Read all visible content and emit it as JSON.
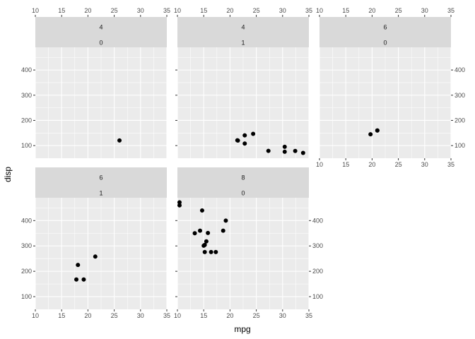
{
  "chart_data": {
    "type": "scatter",
    "xlabel": "mpg",
    "ylabel": "disp",
    "xlim": [
      10,
      35
    ],
    "ylim": [
      50,
      490
    ],
    "x_ticks": [
      10,
      15,
      20,
      25,
      30,
      35
    ],
    "y_ticks": [
      100,
      200,
      300,
      400
    ],
    "grid": true,
    "colors": {
      "panel_bg": "#ebebeb",
      "strip_bg": "#d9d9d9",
      "grid": "#ffffff",
      "point": "#000000",
      "tick": "#333333"
    },
    "panels": [
      {
        "strip": [
          "4",
          "0"
        ],
        "points": [
          [
            26.0,
            120.3
          ]
        ]
      },
      {
        "strip": [
          "4",
          "1"
        ],
        "points": [
          [
            22.8,
            108.0
          ],
          [
            24.4,
            146.7
          ],
          [
            22.8,
            140.8
          ],
          [
            32.4,
            78.7
          ],
          [
            30.4,
            75.7
          ],
          [
            33.9,
            71.1
          ],
          [
            21.5,
            120.1
          ],
          [
            27.3,
            79.0
          ],
          [
            30.4,
            95.1
          ],
          [
            21.4,
            121.0
          ]
        ]
      },
      {
        "strip": [
          "6",
          "0"
        ],
        "points": [
          [
            21.0,
            160.0
          ],
          [
            21.0,
            160.0
          ],
          [
            19.7,
            145.0
          ]
        ]
      },
      {
        "strip": [
          "6",
          "1"
        ],
        "points": [
          [
            21.4,
            258.0
          ],
          [
            18.1,
            225.0
          ],
          [
            19.2,
            167.6
          ],
          [
            17.8,
            167.6
          ]
        ]
      },
      {
        "strip": [
          "8",
          "0"
        ],
        "points": [
          [
            18.7,
            360.0
          ],
          [
            14.3,
            360.0
          ],
          [
            16.4,
            275.8
          ],
          [
            17.3,
            275.8
          ],
          [
            15.2,
            275.8
          ],
          [
            10.4,
            472.0
          ],
          [
            10.4,
            460.0
          ],
          [
            14.7,
            440.0
          ],
          [
            15.5,
            318.0
          ],
          [
            15.2,
            304.0
          ],
          [
            13.3,
            350.0
          ],
          [
            19.2,
            400.0
          ],
          [
            15.8,
            351.0
          ],
          [
            15.0,
            301.0
          ]
        ]
      }
    ]
  }
}
